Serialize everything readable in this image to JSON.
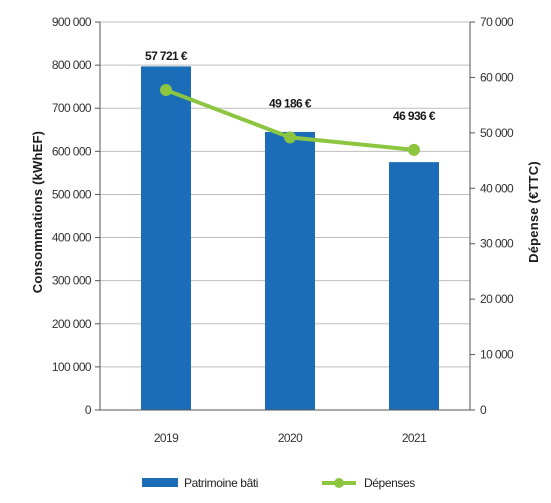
{
  "chart_data": {
    "type": "bar",
    "categories": [
      "2019",
      "2020",
      "2021"
    ],
    "series": [
      {
        "name": "Patrimoine bâti",
        "type": "bar",
        "axis": "left",
        "color": "#1c6db8",
        "values": [
          797000,
          645000,
          575000
        ]
      },
      {
        "name": "Dépenses",
        "type": "line",
        "axis": "right",
        "color": "#8cc540",
        "values": [
          57721,
          49186,
          46936
        ],
        "labels": [
          "57 721 €",
          "49 186 €",
          "46 936 €"
        ]
      }
    ],
    "ylabel": "Consommations (kWhEF)",
    "y2label": "Dépense (€TTC)",
    "ylim": [
      0,
      900000
    ],
    "y2lim": [
      0,
      70000
    ],
    "yticks": [
      "0",
      "100 000",
      "200 000",
      "300 000",
      "400 000",
      "500 000",
      "600 000",
      "700 000",
      "800 000",
      "900 000"
    ],
    "y2ticks": [
      "0",
      "10 000",
      "20 000",
      "30 000",
      "40 000",
      "50 000",
      "60 000",
      "70 000"
    ],
    "grid": true,
    "legend_position": "bottom"
  }
}
